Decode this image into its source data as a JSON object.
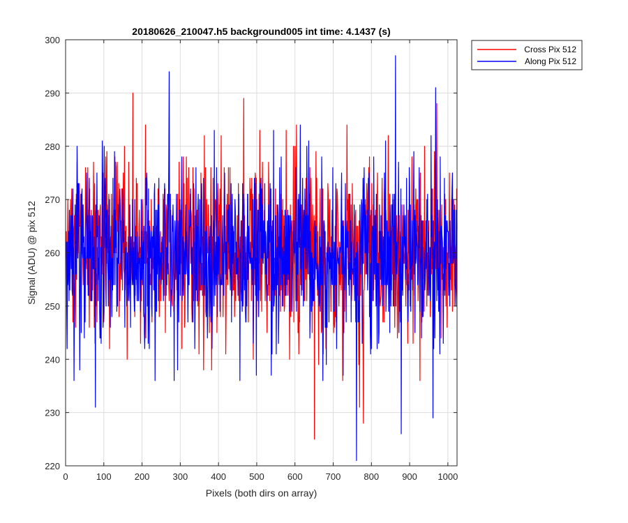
{
  "chart_data": {
    "type": "line",
    "title": "20180626_210047.h5  background005   int time: 4.1437 (s)",
    "xlabel": "Pixels (both dirs on array)",
    "ylabel": "Signal (ADU) @ pix 512",
    "xlim": [
      0,
      1024
    ],
    "ylim": [
      220,
      300
    ],
    "xticks": [
      0,
      100,
      200,
      300,
      400,
      500,
      600,
      700,
      800,
      900,
      1000
    ],
    "yticks": [
      220,
      230,
      240,
      250,
      260,
      270,
      280,
      290,
      300
    ],
    "grid": true,
    "legend_position": "outside-top-right",
    "series": [
      {
        "name": "Cross Pix 512",
        "color": "#ff0000",
        "description": "noisy background signal, mean ~260 ADU, range ~225-290",
        "mean": 260,
        "extremes": [
          {
            "x": 175,
            "y": 290
          },
          {
            "x": 465,
            "y": 289
          },
          {
            "x": 650,
            "y": 225
          },
          {
            "x": 778,
            "y": 228
          },
          {
            "x": 768,
            "y": 231
          },
          {
            "x": 970,
            "y": 288
          }
        ]
      },
      {
        "name": "Along Pix 512",
        "color": "#0000ff",
        "description": "noisy background signal, mean ~260 ADU, range ~221-297",
        "mean": 260,
        "extremes": [
          {
            "x": 270,
            "y": 294
          },
          {
            "x": 862,
            "y": 297
          },
          {
            "x": 760,
            "y": 221
          },
          {
            "x": 877,
            "y": 226
          },
          {
            "x": 960,
            "y": 229
          },
          {
            "x": 77,
            "y": 231
          },
          {
            "x": 967,
            "y": 291
          }
        ]
      }
    ]
  }
}
